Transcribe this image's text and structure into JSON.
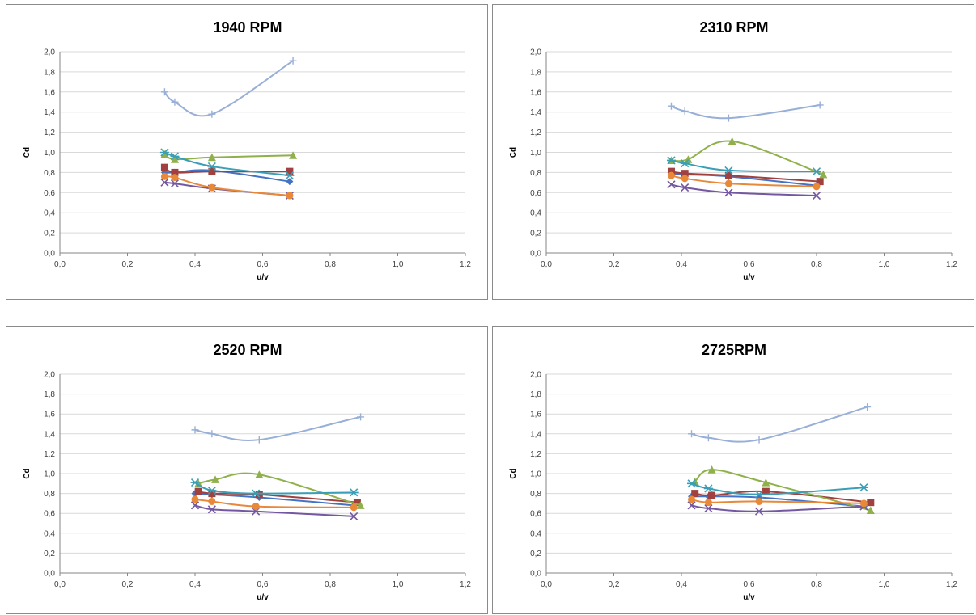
{
  "colors": {
    "s1": "#4472C4",
    "s2": "#A0403F",
    "s3": "#8FB04A",
    "s4": "#7357A0",
    "s5": "#3A9FB6",
    "s6": "#E8893A",
    "s7": "#98AFD7",
    "grid": "#D9D9D9",
    "axis": "#868686"
  },
  "chart_data": [
    {
      "type": "scatter",
      "title": "1940 RPM",
      "xlabel": "u/v",
      "ylabel": "Cd",
      "xlim": [
        0,
        1.2
      ],
      "ylim": [
        0,
        2.0
      ],
      "xticks": [
        "0,0",
        "0,2",
        "0,4",
        "0,6",
        "0,8",
        "1,0",
        "1,2"
      ],
      "yticks": [
        "0,0",
        "0,2",
        "0,4",
        "0,6",
        "0,8",
        "1,0",
        "1,2",
        "1,4",
        "1,6",
        "1,8",
        "2,0"
      ],
      "grid": true,
      "series": [
        {
          "marker": "diamond",
          "color": "#4472C4",
          "x": [
            0.31,
            0.34,
            0.45,
            0.68
          ],
          "y": [
            0.8,
            0.8,
            0.82,
            0.71
          ]
        },
        {
          "marker": "square",
          "color": "#A0403F",
          "x": [
            0.31,
            0.34,
            0.45,
            0.68
          ],
          "y": [
            0.85,
            0.8,
            0.81,
            0.81
          ]
        },
        {
          "marker": "triangle",
          "color": "#8FB04A",
          "x": [
            0.31,
            0.34,
            0.45,
            0.69
          ],
          "y": [
            0.98,
            0.93,
            0.95,
            0.97
          ]
        },
        {
          "marker": "x",
          "color": "#7357A0",
          "x": [
            0.31,
            0.34,
            0.45,
            0.68
          ],
          "y": [
            0.7,
            0.69,
            0.64,
            0.57
          ]
        },
        {
          "marker": "asterisk",
          "color": "#3A9FB6",
          "x": [
            0.31,
            0.34,
            0.45,
            0.68
          ],
          "y": [
            1.0,
            0.96,
            0.86,
            0.77
          ]
        },
        {
          "marker": "circle",
          "color": "#E8893A",
          "x": [
            0.31,
            0.34,
            0.45,
            0.68
          ],
          "y": [
            0.76,
            0.75,
            0.65,
            0.57
          ]
        },
        {
          "marker": "plus",
          "color": "#98AFD7",
          "x": [
            0.31,
            0.34,
            0.45,
            0.69
          ],
          "y": [
            1.6,
            1.5,
            1.38,
            1.91
          ]
        }
      ]
    },
    {
      "type": "scatter",
      "title": "2310 RPM",
      "xlabel": "u/v",
      "ylabel": "Cd",
      "xlim": [
        0,
        1.2
      ],
      "ylim": [
        0,
        2.0
      ],
      "xticks": [
        "0,0",
        "0,2",
        "0,4",
        "0,6",
        "0,8",
        "1,0",
        "1,2"
      ],
      "yticks": [
        "0,0",
        "0,2",
        "0,4",
        "0,6",
        "0,8",
        "1,0",
        "1,2",
        "1,4",
        "1,6",
        "1,8",
        "2,0"
      ],
      "grid": true,
      "series": [
        {
          "marker": "diamond",
          "color": "#4472C4",
          "x": [
            0.37,
            0.41,
            0.54,
            0.8
          ],
          "y": [
            0.79,
            0.78,
            0.76,
            0.67
          ]
        },
        {
          "marker": "square",
          "color": "#A0403F",
          "x": [
            0.37,
            0.41,
            0.54,
            0.81
          ],
          "y": [
            0.81,
            0.79,
            0.77,
            0.71
          ]
        },
        {
          "marker": "triangle",
          "color": "#8FB04A",
          "x": [
            0.37,
            0.42,
            0.55,
            0.82
          ],
          "y": [
            0.92,
            0.93,
            1.11,
            0.78
          ]
        },
        {
          "marker": "x",
          "color": "#7357A0",
          "x": [
            0.37,
            0.41,
            0.54,
            0.8
          ],
          "y": [
            0.68,
            0.65,
            0.6,
            0.57
          ]
        },
        {
          "marker": "asterisk",
          "color": "#3A9FB6",
          "x": [
            0.37,
            0.41,
            0.54,
            0.8
          ],
          "y": [
            0.92,
            0.89,
            0.82,
            0.81
          ]
        },
        {
          "marker": "circle",
          "color": "#E8893A",
          "x": [
            0.37,
            0.41,
            0.54,
            0.8
          ],
          "y": [
            0.77,
            0.74,
            0.69,
            0.66
          ]
        },
        {
          "marker": "plus",
          "color": "#98AFD7",
          "x": [
            0.37,
            0.41,
            0.54,
            0.81
          ],
          "y": [
            1.46,
            1.41,
            1.34,
            1.47
          ]
        }
      ]
    },
    {
      "type": "scatter",
      "title": "2520 RPM",
      "xlabel": "u/v",
      "ylabel": "Cd",
      "xlim": [
        0,
        1.2
      ],
      "ylim": [
        0,
        2.0
      ],
      "xticks": [
        "0,0",
        "0,2",
        "0,4",
        "0,6",
        "0,8",
        "1,0",
        "1,2"
      ],
      "yticks": [
        "0,0",
        "0,2",
        "0,4",
        "0,6",
        "0,8",
        "1,0",
        "1,2",
        "1,4",
        "1,6",
        "1,8",
        "2,0"
      ],
      "grid": true,
      "series": [
        {
          "marker": "diamond",
          "color": "#4472C4",
          "x": [
            0.4,
            0.45,
            0.59,
            0.87
          ],
          "y": [
            0.8,
            0.79,
            0.76,
            0.68
          ]
        },
        {
          "marker": "square",
          "color": "#A0403F",
          "x": [
            0.41,
            0.45,
            0.59,
            0.88
          ],
          "y": [
            0.82,
            0.8,
            0.79,
            0.71
          ]
        },
        {
          "marker": "triangle",
          "color": "#8FB04A",
          "x": [
            0.41,
            0.46,
            0.59,
            0.89
          ],
          "y": [
            0.9,
            0.94,
            0.99,
            0.68
          ]
        },
        {
          "marker": "x",
          "color": "#7357A0",
          "x": [
            0.4,
            0.45,
            0.58,
            0.87
          ],
          "y": [
            0.68,
            0.64,
            0.62,
            0.57
          ]
        },
        {
          "marker": "asterisk",
          "color": "#3A9FB6",
          "x": [
            0.4,
            0.45,
            0.58,
            0.87
          ],
          "y": [
            0.91,
            0.83,
            0.8,
            0.81
          ]
        },
        {
          "marker": "circle",
          "color": "#E8893A",
          "x": [
            0.4,
            0.45,
            0.58,
            0.87
          ],
          "y": [
            0.74,
            0.72,
            0.67,
            0.66
          ]
        },
        {
          "marker": "plus",
          "color": "#98AFD7",
          "x": [
            0.4,
            0.45,
            0.59,
            0.89
          ],
          "y": [
            1.44,
            1.4,
            1.34,
            1.57
          ]
        }
      ]
    },
    {
      "type": "scatter",
      "title": "2725RPM",
      "xlabel": "u/v",
      "ylabel": "Cd",
      "xlim": [
        0,
        1.2
      ],
      "ylim": [
        0,
        2.0
      ],
      "xticks": [
        "0,0",
        "0,2",
        "0,4",
        "0,6",
        "0,8",
        "1,0",
        "1,2"
      ],
      "yticks": [
        "0,0",
        "0,2",
        "0,4",
        "0,6",
        "0,8",
        "1,0",
        "1,2",
        "1,4",
        "1,6",
        "1,8",
        "2,0"
      ],
      "grid": true,
      "series": [
        {
          "marker": "diamond",
          "color": "#4472C4",
          "x": [
            0.43,
            0.48,
            0.63,
            0.94
          ],
          "y": [
            0.77,
            0.77,
            0.76,
            0.67
          ]
        },
        {
          "marker": "square",
          "color": "#A0403F",
          "x": [
            0.44,
            0.49,
            0.65,
            0.96
          ],
          "y": [
            0.8,
            0.78,
            0.82,
            0.71
          ]
        },
        {
          "marker": "triangle",
          "color": "#8FB04A",
          "x": [
            0.44,
            0.49,
            0.65,
            0.96
          ],
          "y": [
            0.92,
            1.04,
            0.91,
            0.63
          ]
        },
        {
          "marker": "x",
          "color": "#7357A0",
          "x": [
            0.43,
            0.48,
            0.63,
            0.94
          ],
          "y": [
            0.68,
            0.65,
            0.62,
            0.67
          ]
        },
        {
          "marker": "asterisk",
          "color": "#3A9FB6",
          "x": [
            0.43,
            0.48,
            0.63,
            0.94
          ],
          "y": [
            0.9,
            0.85,
            0.79,
            0.86
          ]
        },
        {
          "marker": "circle",
          "color": "#E8893A",
          "x": [
            0.43,
            0.48,
            0.63,
            0.94
          ],
          "y": [
            0.74,
            0.71,
            0.72,
            0.7
          ]
        },
        {
          "marker": "plus",
          "color": "#98AFD7",
          "x": [
            0.43,
            0.48,
            0.63,
            0.95
          ],
          "y": [
            1.4,
            1.36,
            1.34,
            1.67
          ]
        }
      ]
    }
  ]
}
